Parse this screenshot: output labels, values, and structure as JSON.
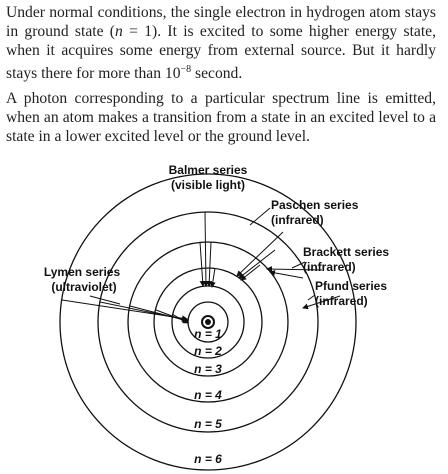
{
  "paragraphs": [
    [
      "Under normal conditions, the single electron in hydrogen atom stays in ground state (",
      "n",
      " = 1). It is excited to some higher energy state, when it acquires some energy from external source. But it hardly stays there for more than 10",
      "−8",
      " second."
    ],
    [
      "A photon corresponding to a particular spectrum line is emitted, when an atom makes a transition from a state in an excited level to a state in a lower excited level or the ground level."
    ]
  ],
  "diagram": {
    "series": [
      {
        "name": "Balmer series",
        "range": "(visible light)"
      },
      {
        "name": "Paschen series",
        "range": "(infrared)"
      },
      {
        "name": "Brackett series",
        "range": "(infrared)"
      },
      {
        "name": "Pfund series",
        "range": "(infrared)"
      },
      {
        "name": "Lymen series",
        "range": "(ultraviolet)"
      }
    ],
    "levels": [
      "n = 1",
      "n = 2",
      "n = 3",
      "n = 4",
      "n = 5",
      "n = 6"
    ]
  }
}
